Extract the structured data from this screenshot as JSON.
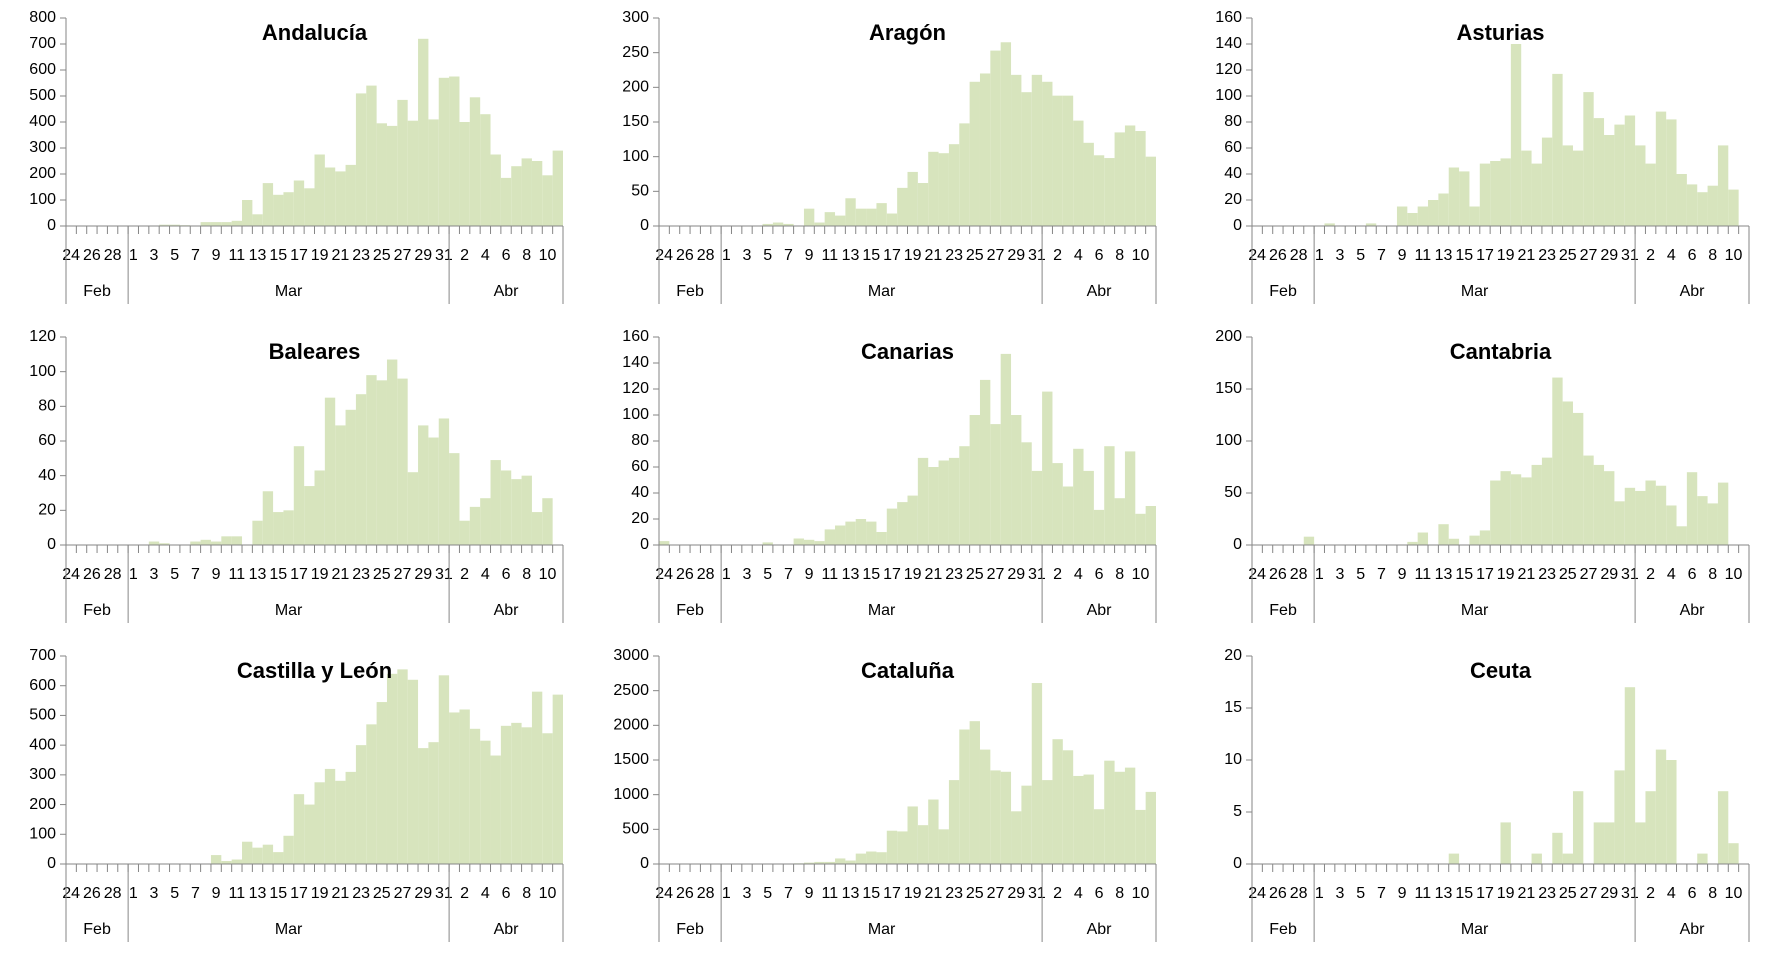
{
  "chart_data": [
    {
      "type": "bar",
      "title": "Andalucía",
      "color": "#d7e4bd",
      "categories": [
        "24",
        null,
        "26",
        null,
        "28",
        null,
        "1",
        null,
        "3",
        null,
        "5",
        null,
        "7",
        null,
        "9",
        null,
        "11",
        null,
        "13",
        null,
        "15",
        null,
        "17",
        null,
        "19",
        null,
        "21",
        null,
        "23",
        null,
        "25",
        null,
        "27",
        null,
        "29",
        null,
        "31",
        null,
        "2",
        null,
        "4",
        null,
        "6",
        null,
        "8",
        null,
        "10",
        null
      ],
      "x_groups": [
        {
          "label": "Feb",
          "size": 6
        },
        {
          "label": "Mar",
          "size": 31
        },
        {
          "label": "Abr",
          "size": 11
        }
      ],
      "values": [
        0,
        0,
        0,
        0,
        0,
        0,
        0,
        0,
        0,
        5,
        5,
        3,
        2,
        15,
        15,
        15,
        20,
        100,
        45,
        165,
        120,
        130,
        175,
        145,
        275,
        225,
        210,
        235,
        510,
        540,
        395,
        385,
        485,
        405,
        720,
        410,
        570,
        575,
        400,
        495,
        430,
        275,
        185,
        230,
        260,
        250,
        195,
        290
      ],
      "ylim": [
        0,
        800
      ],
      "yticks": [
        0,
        100,
        200,
        300,
        400,
        500,
        600,
        700,
        800
      ]
    },
    {
      "type": "bar",
      "title": "Aragón",
      "color": "#d7e4bd",
      "categories": [
        "24",
        null,
        "26",
        null,
        "28",
        null,
        "1",
        null,
        "3",
        null,
        "5",
        null,
        "7",
        null,
        "9",
        null,
        "11",
        null,
        "13",
        null,
        "15",
        null,
        "17",
        null,
        "19",
        null,
        "21",
        null,
        "23",
        null,
        "25",
        null,
        "27",
        null,
        "29",
        null,
        "31",
        null,
        "2",
        null,
        "4",
        null,
        "6",
        null,
        "8",
        null,
        "10",
        null
      ],
      "x_groups": [
        {
          "label": "Feb",
          "size": 6
        },
        {
          "label": "Mar",
          "size": 31
        },
        {
          "label": "Abr",
          "size": 11
        }
      ],
      "values": [
        0,
        0,
        0,
        0,
        0,
        0,
        0,
        0,
        0,
        0,
        3,
        5,
        3,
        0,
        25,
        5,
        20,
        15,
        40,
        25,
        25,
        33,
        18,
        55,
        78,
        62,
        107,
        105,
        118,
        148,
        208,
        220,
        253,
        265,
        218,
        193,
        218,
        208,
        188,
        188,
        152,
        120,
        102,
        98,
        135,
        145,
        137,
        100
      ],
      "ylim": [
        0,
        300
      ],
      "yticks": [
        0,
        50,
        100,
        150,
        200,
        250,
        300
      ]
    },
    {
      "type": "bar",
      "title": "Asturias",
      "color": "#d7e4bd",
      "categories": [
        "24",
        null,
        "26",
        null,
        "28",
        null,
        "1",
        null,
        "3",
        null,
        "5",
        null,
        "7",
        null,
        "9",
        null,
        "11",
        null,
        "13",
        null,
        "15",
        null,
        "17",
        null,
        "19",
        null,
        "21",
        null,
        "23",
        null,
        "25",
        null,
        "27",
        null,
        "29",
        null,
        "31",
        null,
        "2",
        null,
        "4",
        null,
        "6",
        null,
        "8",
        null,
        "10",
        null
      ],
      "x_groups": [
        {
          "label": "Feb",
          "size": 6
        },
        {
          "label": "Mar",
          "size": 31
        },
        {
          "label": "Abr",
          "size": 11
        }
      ],
      "values": [
        0,
        0,
        0,
        0,
        0,
        0,
        0,
        2,
        0,
        0,
        0,
        2,
        0,
        0,
        15,
        10,
        15,
        20,
        25,
        45,
        42,
        15,
        48,
        50,
        52,
        140,
        58,
        48,
        68,
        117,
        62,
        58,
        103,
        83,
        70,
        78,
        85,
        62,
        48,
        88,
        82,
        40,
        32,
        26,
        31,
        62,
        28,
        0
      ],
      "ylim": [
        0,
        160
      ],
      "yticks": [
        0,
        20,
        40,
        60,
        80,
        100,
        120,
        140,
        160
      ]
    },
    {
      "type": "bar",
      "title": "Baleares",
      "color": "#d7e4bd",
      "categories": [
        "24",
        null,
        "26",
        null,
        "28",
        null,
        "1",
        null,
        "3",
        null,
        "5",
        null,
        "7",
        null,
        "9",
        null,
        "11",
        null,
        "13",
        null,
        "15",
        null,
        "17",
        null,
        "19",
        null,
        "21",
        null,
        "23",
        null,
        "25",
        null,
        "27",
        null,
        "29",
        null,
        "31",
        null,
        "2",
        null,
        "4",
        null,
        "6",
        null,
        "8",
        null,
        "10",
        null
      ],
      "x_groups": [
        {
          "label": "Feb",
          "size": 6
        },
        {
          "label": "Mar",
          "size": 31
        },
        {
          "label": "Abr",
          "size": 11
        }
      ],
      "values": [
        0,
        0,
        0,
        0,
        0,
        0,
        0,
        0,
        2,
        1,
        0,
        0,
        2,
        3,
        2,
        5,
        5,
        0,
        14,
        31,
        19,
        20,
        57,
        34,
        43,
        85,
        69,
        78,
        87,
        98,
        95,
        107,
        96,
        42,
        69,
        62,
        73,
        53,
        14,
        22,
        27,
        49,
        43,
        38,
        40,
        19,
        27,
        0
      ],
      "ylim": [
        0,
        120
      ],
      "yticks": [
        0,
        20,
        40,
        60,
        80,
        100,
        120
      ]
    },
    {
      "type": "bar",
      "title": "Canarias",
      "color": "#d7e4bd",
      "categories": [
        "24",
        null,
        "26",
        null,
        "28",
        null,
        "1",
        null,
        "3",
        null,
        "5",
        null,
        "7",
        null,
        "9",
        null,
        "11",
        null,
        "13",
        null,
        "15",
        null,
        "17",
        null,
        "19",
        null,
        "21",
        null,
        "23",
        null,
        "25",
        null,
        "27",
        null,
        "29",
        null,
        "31",
        null,
        "2",
        null,
        "4",
        null,
        "6",
        null,
        "8",
        null,
        "10",
        null
      ],
      "x_groups": [
        {
          "label": "Feb",
          "size": 6
        },
        {
          "label": "Mar",
          "size": 31
        },
        {
          "label": "Abr",
          "size": 11
        }
      ],
      "values": [
        3,
        0,
        0,
        0,
        0,
        0,
        0,
        0,
        0,
        0,
        2,
        0,
        0,
        5,
        4,
        3,
        12,
        15,
        18,
        20,
        18,
        10,
        28,
        33,
        38,
        67,
        60,
        65,
        67,
        76,
        100,
        127,
        93,
        147,
        100,
        79,
        57,
        118,
        63,
        45,
        74,
        57,
        27,
        76,
        36,
        72,
        24,
        30
      ],
      "ylim": [
        0,
        160
      ],
      "yticks": [
        0,
        20,
        40,
        60,
        80,
        100,
        120,
        140,
        160
      ]
    },
    {
      "type": "bar",
      "title": "Cantabria",
      "color": "#d7e4bd",
      "categories": [
        "24",
        null,
        "26",
        null,
        "28",
        null,
        "1",
        null,
        "3",
        null,
        "5",
        null,
        "7",
        null,
        "9",
        null,
        "11",
        null,
        "13",
        null,
        "15",
        null,
        "17",
        null,
        "19",
        null,
        "21",
        null,
        "23",
        null,
        "25",
        null,
        "27",
        null,
        "29",
        null,
        "31",
        null,
        "2",
        null,
        "4",
        null,
        "6",
        null,
        "8",
        null,
        "10",
        null
      ],
      "x_groups": [
        {
          "label": "Feb",
          "size": 6
        },
        {
          "label": "Mar",
          "size": 31
        },
        {
          "label": "Abr",
          "size": 11
        }
      ],
      "values": [
        0,
        0,
        0,
        0,
        0,
        8,
        0,
        0,
        0,
        0,
        0,
        0,
        0,
        0,
        0,
        3,
        12,
        0,
        20,
        6,
        0,
        9,
        14,
        62,
        71,
        68,
        65,
        77,
        84,
        161,
        138,
        127,
        86,
        77,
        71,
        42,
        55,
        52,
        62,
        57,
        38,
        18,
        70,
        47,
        40,
        60,
        0,
        0
      ],
      "ylim": [
        0,
        200
      ],
      "yticks": [
        0,
        50,
        100,
        150,
        200
      ]
    },
    {
      "type": "bar",
      "title": "Castilla y León",
      "color": "#d7e4bd",
      "categories": [
        "24",
        null,
        "26",
        null,
        "28",
        null,
        "1",
        null,
        "3",
        null,
        "5",
        null,
        "7",
        null,
        "9",
        null,
        "11",
        null,
        "13",
        null,
        "15",
        null,
        "17",
        null,
        "19",
        null,
        "21",
        null,
        "23",
        null,
        "25",
        null,
        "27",
        null,
        "29",
        null,
        "31",
        null,
        "2",
        null,
        "4",
        null,
        "6",
        null,
        "8",
        null,
        "10",
        null
      ],
      "x_groups": [
        {
          "label": "Feb",
          "size": 6
        },
        {
          "label": "Mar",
          "size": 31
        },
        {
          "label": "Abr",
          "size": 11
        }
      ],
      "values": [
        0,
        0,
        0,
        0,
        0,
        0,
        0,
        0,
        0,
        0,
        0,
        0,
        0,
        0,
        30,
        10,
        15,
        75,
        55,
        65,
        40,
        95,
        235,
        200,
        275,
        320,
        280,
        310,
        400,
        470,
        545,
        640,
        655,
        620,
        390,
        410,
        635,
        510,
        520,
        455,
        415,
        365,
        465,
        475,
        460,
        580,
        440,
        570
      ],
      "ylim": [
        0,
        700
      ],
      "yticks": [
        0,
        100,
        200,
        300,
        400,
        500,
        600,
        700
      ]
    },
    {
      "type": "bar",
      "title": "Cataluña",
      "color": "#d7e4bd",
      "categories": [
        "24",
        null,
        "26",
        null,
        "28",
        null,
        "1",
        null,
        "3",
        null,
        "5",
        null,
        "7",
        null,
        "9",
        null,
        "11",
        null,
        "13",
        null,
        "15",
        null,
        "17",
        null,
        "19",
        null,
        "21",
        null,
        "23",
        null,
        "25",
        null,
        "27",
        null,
        "29",
        null,
        "31",
        null,
        "2",
        null,
        "4",
        null,
        "6",
        null,
        "8",
        null,
        "10",
        null
      ],
      "x_groups": [
        {
          "label": "Feb",
          "size": 6
        },
        {
          "label": "Mar",
          "size": 31
        },
        {
          "label": "Abr",
          "size": 11
        }
      ],
      "values": [
        0,
        0,
        0,
        0,
        0,
        0,
        0,
        0,
        0,
        0,
        0,
        0,
        0,
        10,
        20,
        30,
        30,
        80,
        50,
        150,
        180,
        170,
        480,
        470,
        830,
        560,
        930,
        500,
        1210,
        1940,
        2060,
        1650,
        1350,
        1330,
        760,
        1130,
        2610,
        1210,
        1800,
        1640,
        1270,
        1290,
        790,
        1490,
        1330,
        1390,
        780,
        1040
      ],
      "ylim": [
        0,
        3000
      ],
      "yticks": [
        0,
        500,
        1000,
        1500,
        2000,
        2500,
        3000
      ]
    },
    {
      "type": "bar",
      "title": "Ceuta",
      "color": "#d7e4bd",
      "categories": [
        "24",
        null,
        "26",
        null,
        "28",
        null,
        "1",
        null,
        "3",
        null,
        "5",
        null,
        "7",
        null,
        "9",
        null,
        "11",
        null,
        "13",
        null,
        "15",
        null,
        "17",
        null,
        "19",
        null,
        "21",
        null,
        "23",
        null,
        "25",
        null,
        "27",
        null,
        "29",
        null,
        "31",
        null,
        "2",
        null,
        "4",
        null,
        "6",
        null,
        "8",
        null,
        "10",
        null
      ],
      "x_groups": [
        {
          "label": "Feb",
          "size": 6
        },
        {
          "label": "Mar",
          "size": 31
        },
        {
          "label": "Abr",
          "size": 11
        }
      ],
      "values": [
        0,
        0,
        0,
        0,
        0,
        0,
        0,
        0,
        0,
        0,
        0,
        0,
        0,
        0,
        0,
        0,
        0,
        0,
        0,
        1,
        0,
        0,
        0,
        0,
        4,
        0,
        0,
        1,
        0,
        3,
        1,
        7,
        0,
        4,
        4,
        9,
        17,
        4,
        7,
        11,
        10,
        0,
        0,
        1,
        0,
        7,
        2,
        0
      ],
      "ylim": [
        0,
        20
      ],
      "yticks": [
        0,
        5,
        10,
        15,
        20
      ]
    }
  ]
}
